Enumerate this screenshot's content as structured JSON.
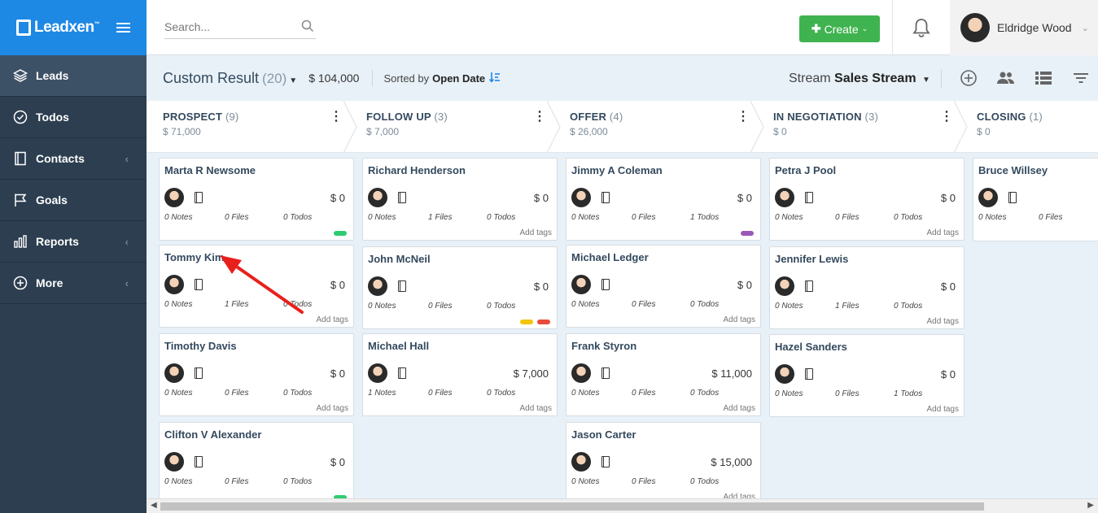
{
  "brand": {
    "name": "Leadxen",
    "tm": "™"
  },
  "nav": [
    {
      "label": "Leads",
      "icon": "layers-icon",
      "active": true,
      "chevron": false
    },
    {
      "label": "Todos",
      "icon": "check-circle-icon",
      "active": false,
      "chevron": false
    },
    {
      "label": "Contacts",
      "icon": "contacts-book-icon",
      "active": false,
      "chevron": true
    },
    {
      "label": "Goals",
      "icon": "flag-icon",
      "active": false,
      "chevron": false
    },
    {
      "label": "Reports",
      "icon": "bar-chart-icon",
      "active": false,
      "chevron": true
    },
    {
      "label": "More",
      "icon": "plus-circle-icon",
      "active": false,
      "chevron": true
    }
  ],
  "topbar": {
    "search_placeholder": "Search...",
    "create_label": "Create",
    "user_name": "Eldridge Wood"
  },
  "subbar": {
    "title": "Custom Result",
    "count": "(20)",
    "value": "$ 104,000",
    "sort_label": "Sorted by",
    "sort_value": "Open Date",
    "stream_label": "Stream",
    "stream_value": "Sales Stream"
  },
  "stages": [
    {
      "name": "PROSPECT",
      "count": "(9)",
      "value": "$ 71,000"
    },
    {
      "name": "FOLLOW UP",
      "count": "(3)",
      "value": "$ 7,000"
    },
    {
      "name": "OFFER",
      "count": "(4)",
      "value": "$ 26,000"
    },
    {
      "name": "IN NEGOTIATION",
      "count": "(3)",
      "value": "$ 0"
    },
    {
      "name": "CLOSING",
      "count": "(1)",
      "value": "$ 0"
    }
  ],
  "colors": {
    "green_tag": "#2ecc71",
    "purple_tag": "#9b59b6",
    "yellow_tag": "#f1c40f",
    "red_tag": "#e74c3c",
    "annotation_arrow": "#e8201c"
  },
  "columns": [
    {
      "cards": [
        {
          "name": "Marta R Newsome",
          "value": "$ 0",
          "notes": "0 Notes",
          "files": "0 Files",
          "todos": "0 Todos",
          "tags_label": "",
          "tags": [
            "green"
          ]
        },
        {
          "name": "Tommy Kim",
          "value": "$ 0",
          "notes": "0 Notes",
          "files": "1 Files",
          "todos": "0 Todos",
          "tags_label": "Add tags",
          "tags": []
        },
        {
          "name": "Timothy Davis",
          "value": "$ 0",
          "notes": "0 Notes",
          "files": "0 Files",
          "todos": "0 Todos",
          "tags_label": "Add tags",
          "tags": []
        },
        {
          "name": "Clifton V Alexander",
          "value": "$ 0",
          "notes": "0 Notes",
          "files": "0 Files",
          "todos": "0 Todos",
          "tags_label": "",
          "tags": [
            "green"
          ]
        }
      ]
    },
    {
      "cards": [
        {
          "name": "Richard Henderson",
          "value": "$ 0",
          "notes": "0 Notes",
          "files": "1 Files",
          "todos": "0 Todos",
          "tags_label": "Add tags",
          "tags": []
        },
        {
          "name": "John McNeil",
          "value": "$ 0",
          "notes": "0 Notes",
          "files": "0 Files",
          "todos": "0 Todos",
          "tags_label": "",
          "tags": [
            "yellow",
            "red"
          ]
        },
        {
          "name": "Michael Hall",
          "value": "$ 7,000",
          "notes": "1 Notes",
          "files": "0 Files",
          "todos": "0 Todos",
          "tags_label": "Add tags",
          "tags": []
        }
      ]
    },
    {
      "cards": [
        {
          "name": "Jimmy A Coleman",
          "value": "$ 0",
          "notes": "0 Notes",
          "files": "0 Files",
          "todos": "1 Todos",
          "tags_label": "",
          "tags": [
            "purple"
          ]
        },
        {
          "name": "Michael Ledger",
          "value": "$ 0",
          "notes": "0 Notes",
          "files": "0 Files",
          "todos": "0 Todos",
          "tags_label": "Add tags",
          "tags": []
        },
        {
          "name": "Frank Styron",
          "value": "$ 11,000",
          "notes": "0 Notes",
          "files": "0 Files",
          "todos": "0 Todos",
          "tags_label": "Add tags",
          "tags": []
        },
        {
          "name": "Jason Carter",
          "value": "$ 15,000",
          "notes": "0 Notes",
          "files": "0 Files",
          "todos": "0 Todos",
          "tags_label": "Add tags",
          "tags": []
        }
      ]
    },
    {
      "cards": [
        {
          "name": "Petra J Pool",
          "value": "$ 0",
          "notes": "0 Notes",
          "files": "0 Files",
          "todos": "0 Todos",
          "tags_label": "Add tags",
          "tags": []
        },
        {
          "name": "Jennifer Lewis",
          "value": "$ 0",
          "notes": "0 Notes",
          "files": "1 Files",
          "todos": "0 Todos",
          "tags_label": "Add tags",
          "tags": []
        },
        {
          "name": "Hazel Sanders",
          "value": "$ 0",
          "notes": "0 Notes",
          "files": "0 Files",
          "todos": "1 Todos",
          "tags_label": "Add tags",
          "tags": []
        }
      ]
    },
    {
      "cards": [
        {
          "name": "Bruce Willsey",
          "value": "",
          "notes": "0 Notes",
          "files": "0 Files",
          "todos": "",
          "tags_label": "",
          "tags": []
        }
      ]
    }
  ]
}
